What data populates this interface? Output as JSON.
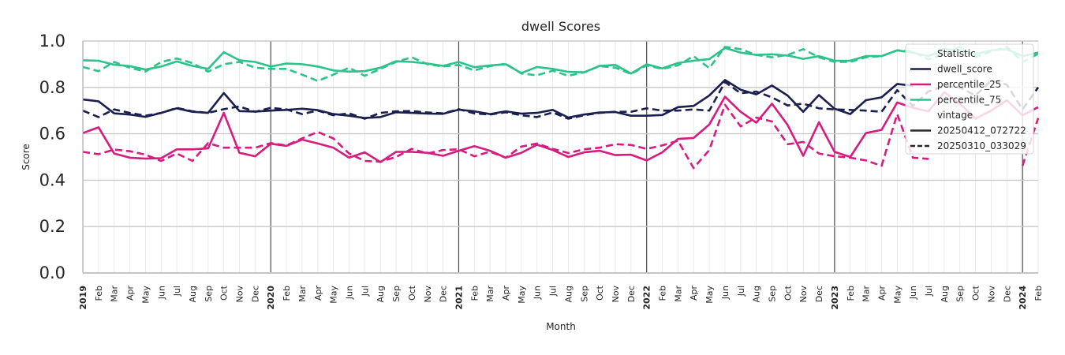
{
  "chart_data": {
    "type": "line",
    "title": "dwell Scores",
    "xlabel": "Month",
    "ylabel": "Score",
    "ylim": [
      0,
      1.0
    ],
    "yticks": [
      "0.0",
      "0.2",
      "0.4",
      "0.6",
      "0.8",
      "1.0"
    ],
    "x_start": "2019-01",
    "x_end": "2024-02",
    "month_labels": [
      "2019",
      "Feb",
      "Mar",
      "Apr",
      "May",
      "Jun",
      "Jul",
      "Aug",
      "Sep",
      "Oct",
      "Nov",
      "Dec",
      "2020",
      "Feb",
      "Mar",
      "Apr",
      "May",
      "Jun",
      "Jul",
      "Aug",
      "Sep",
      "Oct",
      "Nov",
      "Dec",
      "2021",
      "Feb",
      "Mar",
      "Apr",
      "May",
      "Jun",
      "Jul",
      "Aug",
      "Sep",
      "Oct",
      "Nov",
      "Dec",
      "2022",
      "Feb",
      "Mar",
      "Apr",
      "May",
      "Jun",
      "Jul",
      "Aug",
      "Sep",
      "Oct",
      "Nov",
      "Dec",
      "2023",
      "Feb",
      "Mar",
      "Apr",
      "May",
      "Jun",
      "Jul",
      "Aug",
      "Sep",
      "Oct",
      "Nov",
      "Dec",
      "2024",
      "Feb"
    ],
    "grid": true,
    "colors": {
      "dwell_score": "#1b1f4f",
      "percentile_25": "#d61c7f",
      "percentile_75": "#2cc38a"
    },
    "legend": {
      "placement": "top-right",
      "title_statistic": "Statistic",
      "statistics": [
        "dwell_score",
        "percentile_25",
        "percentile_75"
      ],
      "title_vintage": "vintage",
      "vintages": [
        "20250412_072722",
        "20250310_033029"
      ]
    },
    "series": [
      {
        "statistic": "dwell_score",
        "vintage": "20250412_072722",
        "dash": "solid",
        "values": [
          0.748,
          0.74,
          0.688,
          0.683,
          0.673,
          0.69,
          0.71,
          0.695,
          0.69,
          0.776,
          0.698,
          0.696,
          0.7,
          0.703,
          0.708,
          0.702,
          0.685,
          0.678,
          0.668,
          0.672,
          0.693,
          0.69,
          0.687,
          0.686,
          0.704,
          0.697,
          0.685,
          0.697,
          0.687,
          0.69,
          0.703,
          0.67,
          0.683,
          0.692,
          0.694,
          0.678,
          0.678,
          0.681,
          0.715,
          0.72,
          0.765,
          0.832,
          0.79,
          0.77,
          0.808,
          0.765,
          0.695,
          0.767,
          0.708,
          0.685,
          0.745,
          0.757,
          0.815,
          0.807,
          null,
          null,
          null,
          null,
          null,
          null,
          null,
          null
        ]
      },
      {
        "statistic": "dwell_score",
        "vintage": "20250310_033029",
        "dash": "dashed",
        "values": [
          0.7,
          0.672,
          0.705,
          0.69,
          0.678,
          0.69,
          0.712,
          0.697,
          0.69,
          0.706,
          0.718,
          0.695,
          0.712,
          0.705,
          0.685,
          0.7,
          0.68,
          0.688,
          0.665,
          0.69,
          0.697,
          0.698,
          0.692,
          0.688,
          0.706,
          0.688,
          0.683,
          0.693,
          0.68,
          0.672,
          0.692,
          0.665,
          0.68,
          0.69,
          0.695,
          0.695,
          0.71,
          0.7,
          0.7,
          0.705,
          0.7,
          0.823,
          0.775,
          0.782,
          0.757,
          0.722,
          0.73,
          0.71,
          0.705,
          0.703,
          0.7,
          0.695,
          0.788,
          0.72,
          0.783,
          0.805,
          0.8,
          0.765,
          0.83,
          0.812,
          0.705,
          0.8
        ]
      },
      {
        "statistic": "percentile_25",
        "vintage": "20250412_072722",
        "dash": "solid",
        "values": [
          0.603,
          0.628,
          0.515,
          0.497,
          0.493,
          0.495,
          0.533,
          0.533,
          0.537,
          0.69,
          0.518,
          0.503,
          0.557,
          0.548,
          0.575,
          0.558,
          0.54,
          0.497,
          0.52,
          0.478,
          0.522,
          0.522,
          0.518,
          0.505,
          0.527,
          0.547,
          0.527,
          0.497,
          0.518,
          0.553,
          0.53,
          0.5,
          0.52,
          0.527,
          0.508,
          0.51,
          0.485,
          0.52,
          0.578,
          0.582,
          0.64,
          0.76,
          0.695,
          0.648,
          0.73,
          0.638,
          0.505,
          0.65,
          0.522,
          0.5,
          0.603,
          0.617,
          0.735,
          0.712,
          0.697,
          0.78,
          0.73,
          0.665,
          0.7,
          0.745,
          0.68,
          0.715
        ]
      },
      {
        "statistic": "percentile_25",
        "vintage": "20250310_033029",
        "dash": "dashed",
        "values": [
          0.522,
          0.512,
          0.532,
          0.525,
          0.51,
          0.483,
          0.515,
          0.483,
          0.56,
          0.54,
          0.54,
          0.54,
          0.56,
          0.55,
          0.58,
          0.608,
          0.58,
          0.515,
          0.483,
          0.48,
          0.5,
          0.535,
          0.515,
          0.53,
          0.533,
          0.503,
          0.523,
          0.497,
          0.545,
          0.558,
          0.535,
          0.517,
          0.533,
          0.54,
          0.555,
          0.552,
          0.535,
          0.55,
          0.57,
          0.452,
          0.53,
          0.725,
          0.632,
          0.67,
          0.653,
          0.555,
          0.565,
          0.515,
          0.503,
          0.497,
          0.485,
          0.462,
          0.685,
          0.497,
          0.492,
          null,
          null,
          null,
          null,
          null,
          0.462,
          0.668
        ]
      },
      {
        "statistic": "percentile_75",
        "vintage": "20250412_072722",
        "dash": "solid",
        "values": [
          0.917,
          0.915,
          0.898,
          0.892,
          0.877,
          0.89,
          0.912,
          0.893,
          0.88,
          0.952,
          0.917,
          0.91,
          0.89,
          0.903,
          0.9,
          0.89,
          0.873,
          0.868,
          0.87,
          0.885,
          0.913,
          0.91,
          0.903,
          0.893,
          0.91,
          0.887,
          0.895,
          0.9,
          0.862,
          0.888,
          0.88,
          0.867,
          0.865,
          0.893,
          0.897,
          0.86,
          0.9,
          0.882,
          0.905,
          0.915,
          0.922,
          0.97,
          0.95,
          0.94,
          0.943,
          0.937,
          0.923,
          0.935,
          0.915,
          0.915,
          0.935,
          0.935,
          0.96,
          0.95,
          0.935,
          0.965,
          0.96,
          0.943,
          0.96,
          0.965,
          0.935,
          0.95
        ]
      },
      {
        "statistic": "percentile_75",
        "vintage": "20250310_033029",
        "dash": "dashed",
        "values": [
          0.888,
          0.87,
          0.91,
          0.885,
          0.868,
          0.91,
          0.925,
          0.905,
          0.868,
          0.9,
          0.91,
          0.885,
          0.88,
          0.88,
          0.855,
          0.828,
          0.855,
          0.885,
          0.85,
          0.88,
          0.91,
          0.93,
          0.9,
          0.89,
          0.897,
          0.873,
          0.892,
          0.902,
          0.86,
          0.852,
          0.872,
          0.85,
          0.865,
          0.892,
          0.885,
          0.858,
          0.895,
          0.88,
          0.895,
          0.935,
          0.883,
          0.975,
          0.965,
          0.94,
          0.93,
          0.94,
          0.965,
          0.93,
          0.91,
          0.91,
          0.93,
          0.935,
          0.96,
          0.955,
          0.92,
          0.945,
          0.975,
          0.93,
          0.955,
          0.975,
          0.91,
          0.945
        ]
      }
    ]
  }
}
